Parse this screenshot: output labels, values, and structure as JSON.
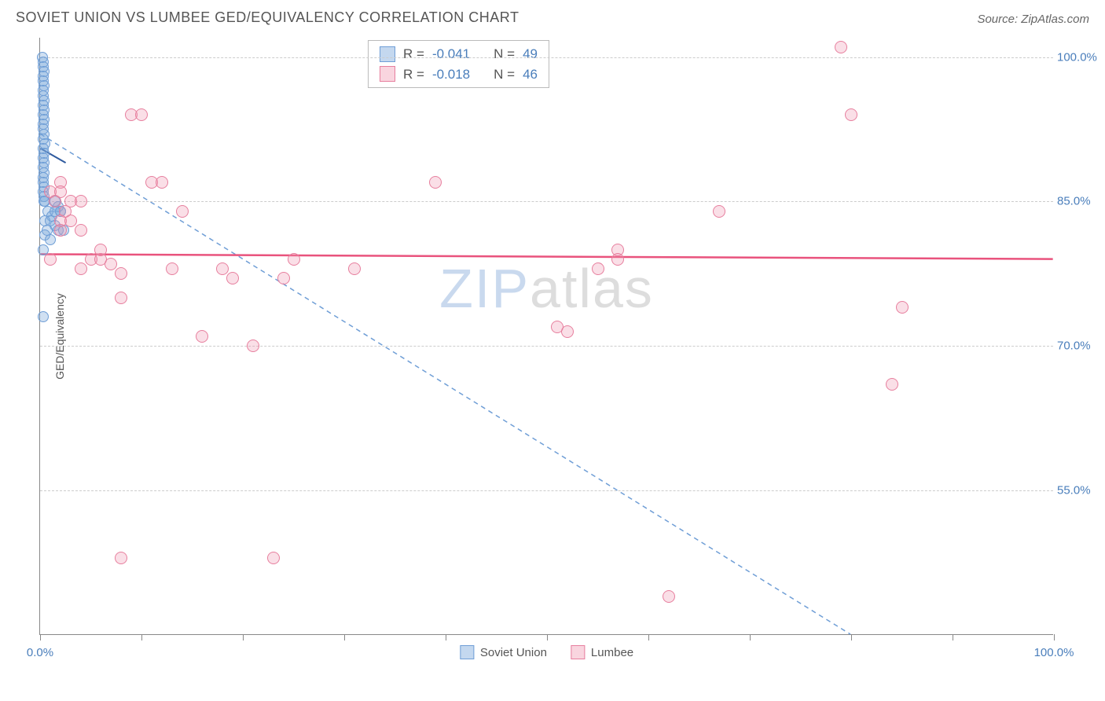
{
  "title": "SOVIET UNION VS LUMBEE GED/EQUIVALENCY CORRELATION CHART",
  "source": "Source: ZipAtlas.com",
  "watermark": {
    "part1": "ZIP",
    "part2": "atlas"
  },
  "y_axis_label": "GED/Equivalency",
  "chart": {
    "type": "scatter",
    "background_color": "#ffffff",
    "grid_color": "#cccccc",
    "axis_color": "#888888",
    "tick_label_color": "#4a7ebb",
    "xlim": [
      0,
      100
    ],
    "ylim": [
      40,
      102
    ],
    "xticks": [
      0,
      10,
      20,
      30,
      40,
      50,
      60,
      70,
      80,
      90,
      100
    ],
    "xtick_labels": {
      "0": "0.0%",
      "100": "100.0%"
    },
    "yticks": [
      55,
      70,
      85,
      100
    ],
    "ytick_labels": {
      "55": "55.0%",
      "70": "70.0%",
      "85": "85.0%",
      "100": "100.0%"
    },
    "series": [
      {
        "name": "Soviet Union",
        "marker": "circle",
        "marker_size": 14,
        "fill_color": "rgba(120,165,218,0.35)",
        "stroke_color": "#6f9ed6",
        "fill_hex": "#9dc1e8",
        "points": [
          [
            0.2,
            100
          ],
          [
            0.3,
            99.5
          ],
          [
            0.3,
            99
          ],
          [
            0.4,
            98.5
          ],
          [
            0.3,
            98
          ],
          [
            0.3,
            97.5
          ],
          [
            0.4,
            97
          ],
          [
            0.3,
            96.5
          ],
          [
            0.3,
            96
          ],
          [
            0.4,
            95.5
          ],
          [
            0.3,
            95
          ],
          [
            0.4,
            94.5
          ],
          [
            0.3,
            94
          ],
          [
            0.4,
            93.5
          ],
          [
            0.3,
            93
          ],
          [
            0.3,
            92.5
          ],
          [
            0.4,
            92
          ],
          [
            0.3,
            91.5
          ],
          [
            0.5,
            91
          ],
          [
            0.3,
            90.5
          ],
          [
            0.4,
            90
          ],
          [
            0.3,
            89.5
          ],
          [
            0.4,
            89
          ],
          [
            0.3,
            88.5
          ],
          [
            0.4,
            88
          ],
          [
            0.3,
            87.5
          ],
          [
            0.3,
            87
          ],
          [
            0.4,
            86.5
          ],
          [
            0.3,
            86
          ],
          [
            0.4,
            85.5
          ],
          [
            1.5,
            85
          ],
          [
            0.5,
            85
          ],
          [
            1.8,
            84.5
          ],
          [
            0.8,
            84
          ],
          [
            2.0,
            84
          ],
          [
            1.2,
            83.5
          ],
          [
            0.5,
            83
          ],
          [
            1.0,
            83
          ],
          [
            1.5,
            82.5
          ],
          [
            0.7,
            82
          ],
          [
            1.8,
            82
          ],
          [
            2.3,
            82
          ],
          [
            0.5,
            81.5
          ],
          [
            1.0,
            81
          ],
          [
            2.0,
            84
          ],
          [
            0.3,
            80
          ],
          [
            1.5,
            84
          ],
          [
            0.3,
            73
          ],
          [
            0.4,
            85
          ]
        ],
        "trend_solid": {
          "x1": 0,
          "y1": 90.5,
          "x2": 2.5,
          "y2": 89,
          "color": "#2f5a9e",
          "width": 2
        },
        "trend_dashed": {
          "x1": 0,
          "y1": 92,
          "x2": 80,
          "y2": 40,
          "color": "#6f9ed6",
          "width": 1.5,
          "dash": "6,5"
        }
      },
      {
        "name": "Lumbee",
        "marker": "circle",
        "marker_size": 16,
        "fill_color": "rgba(240,150,175,0.3)",
        "stroke_color": "#e77f9e",
        "fill_hex": "#f7c0cf",
        "points": [
          [
            1,
            86
          ],
          [
            2,
            87
          ],
          [
            1.5,
            85
          ],
          [
            2.5,
            84
          ],
          [
            3,
            85
          ],
          [
            4,
            78
          ],
          [
            5,
            79
          ],
          [
            6,
            80
          ],
          [
            7,
            78.5
          ],
          [
            8,
            77.5
          ],
          [
            9,
            94
          ],
          [
            11,
            87
          ],
          [
            12,
            87
          ],
          [
            13,
            78
          ],
          [
            14,
            84
          ],
          [
            16,
            71
          ],
          [
            18,
            78
          ],
          [
            19,
            77
          ],
          [
            21,
            70
          ],
          [
            24,
            77
          ],
          [
            25,
            79
          ],
          [
            31,
            78
          ],
          [
            39,
            87
          ],
          [
            51,
            72
          ],
          [
            52,
            71.5
          ],
          [
            55,
            78
          ],
          [
            57,
            80
          ],
          [
            57,
            79
          ],
          [
            67,
            84
          ],
          [
            79,
            101
          ],
          [
            80,
            94
          ],
          [
            84,
            66
          ],
          [
            85,
            74
          ],
          [
            2,
            83
          ],
          [
            3,
            83
          ],
          [
            4,
            82
          ],
          [
            6,
            79
          ],
          [
            8,
            75
          ],
          [
            23,
            48
          ],
          [
            8,
            48
          ],
          [
            62,
            44
          ],
          [
            2,
            86
          ],
          [
            1,
            79
          ],
          [
            2,
            82
          ],
          [
            4,
            85
          ],
          [
            10,
            94
          ]
        ],
        "trend_solid": {
          "x1": 0,
          "y1": 79.5,
          "x2": 100,
          "y2": 79,
          "color": "#e9537d",
          "width": 2.5
        }
      }
    ],
    "stats_box": {
      "rows": [
        {
          "swatch_fill": "#c4d8ef",
          "swatch_stroke": "#6f9ed6",
          "R": "-0.041",
          "N": "49"
        },
        {
          "swatch_fill": "#f9d5df",
          "swatch_stroke": "#e77f9e",
          "R": "-0.018",
          "N": "46"
        }
      ],
      "label_R": "R =",
      "label_N": "N ="
    },
    "bottom_legend": [
      {
        "swatch_fill": "#c4d8ef",
        "swatch_stroke": "#6f9ed6",
        "label": "Soviet Union"
      },
      {
        "swatch_fill": "#f9d5df",
        "swatch_stroke": "#e77f9e",
        "label": "Lumbee"
      }
    ]
  }
}
